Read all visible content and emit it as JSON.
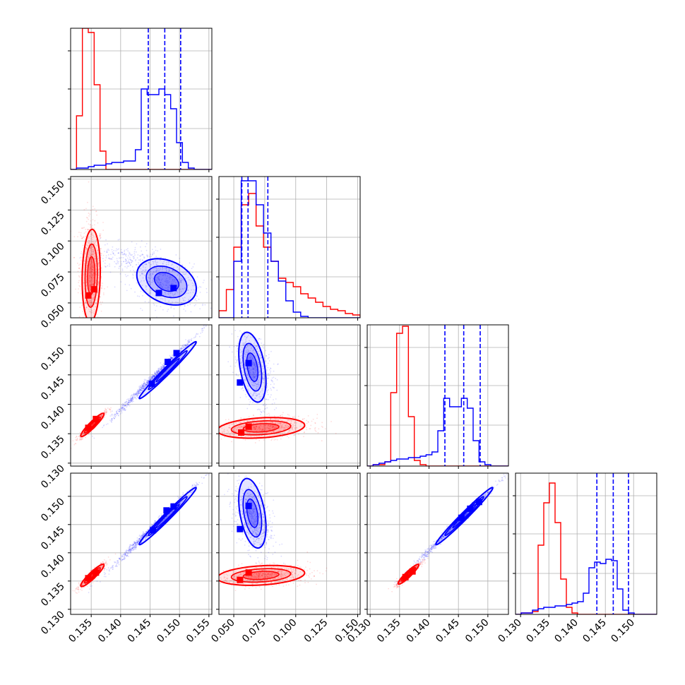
{
  "chart_data": {
    "type": "corner",
    "n_params": 4,
    "grid": true,
    "series": [
      {
        "color": "#ff0000"
      },
      {
        "color": "#0000ff"
      }
    ],
    "tick_labels": {
      "p0": [
        "0.135",
        "0.140",
        "0.145",
        "0.150",
        "0.155"
      ],
      "p1_y": [
        "0.050",
        "0.075",
        "0.100",
        "0.125",
        "0.150"
      ],
      "p1_x": [
        "0.050",
        "0.075",
        "0.100",
        "0.125",
        "0.150"
      ],
      "p2_y": [
        "0.130",
        "0.135",
        "0.140",
        "0.145",
        "0.150"
      ],
      "p2_x": [
        "0.130",
        "0.135",
        "0.140",
        "0.145",
        "0.150"
      ],
      "p3_y": [
        "0.130",
        "0.135",
        "0.140",
        "0.145",
        "0.150"
      ],
      "p3_x": [
        "0.130",
        "0.135",
        "0.140",
        "0.145",
        "0.150"
      ]
    },
    "ranges": {
      "p0": [
        0.1315,
        0.1555
      ],
      "p1": [
        0.038,
        0.152
      ],
      "p2": [
        0.1295,
        0.1535
      ],
      "p3": [
        0.1291,
        0.1541
      ]
    },
    "quantile_lines_blue": {
      "p0": [
        0.1447,
        0.1475,
        0.1502
      ],
      "p1": [
        0.0565,
        0.0615,
        0.0775
      ],
      "p2": [
        0.1427,
        0.1459,
        0.1487
      ],
      "p3": [
        0.1435,
        0.1464,
        0.1491
      ]
    },
    "histograms": {
      "p0": {
        "edges_start": 0.1315,
        "bin_width": 0.001,
        "red": [
          0.0,
          0.38,
          1.0,
          0.97,
          0.6,
          0.13,
          0.0,
          0.0,
          0.0,
          0.0,
          0.0,
          0.0,
          0.0,
          0.0,
          0.0,
          0.0,
          0.0,
          0.0,
          0.0,
          0.0,
          0.0,
          0.0,
          0.0,
          0.0
        ],
        "blue": [
          0.0,
          0.01,
          0.01,
          0.02,
          0.03,
          0.03,
          0.04,
          0.05,
          0.05,
          0.06,
          0.06,
          0.14,
          0.57,
          0.53,
          0.53,
          0.57,
          0.53,
          0.43,
          0.19,
          0.05,
          0.01,
          0.0,
          0.0,
          0.0
        ]
      },
      "p1": {
        "edges_start": 0.038,
        "bin_width": 0.006,
        "red": [
          0.05,
          0.2,
          0.5,
          0.8,
          0.88,
          0.65,
          0.5,
          0.4,
          0.28,
          0.25,
          0.22,
          0.17,
          0.14,
          0.11,
          0.08,
          0.06,
          0.05,
          0.03,
          0.02
        ],
        "blue": [
          0.0,
          0.0,
          0.4,
          0.97,
          0.97,
          0.8,
          0.6,
          0.4,
          0.26,
          0.12,
          0.04,
          0.01,
          0.0,
          0.0,
          0.0,
          0.0,
          0.0,
          0.0,
          0.0
        ]
      },
      "p2": {
        "edges_start": 0.1295,
        "bin_width": 0.001,
        "red": [
          0.0,
          0.01,
          0.01,
          0.03,
          0.52,
          0.94,
          0.99,
          0.35,
          0.04,
          0.01,
          0.0,
          0.0,
          0.0,
          0.0,
          0.0,
          0.0,
          0.0,
          0.0,
          0.0,
          0.0,
          0.0,
          0.0,
          0.0,
          0.0
        ],
        "blue": [
          0.0,
          0.01,
          0.02,
          0.03,
          0.04,
          0.05,
          0.05,
          0.06,
          0.06,
          0.07,
          0.08,
          0.1,
          0.25,
          0.48,
          0.42,
          0.42,
          0.48,
          0.41,
          0.18,
          0.03,
          0.01,
          0.0,
          0.0,
          0.0
        ]
      },
      "p3": {
        "edges_start": 0.1291,
        "bin_width": 0.001,
        "red": [
          0.0,
          0.01,
          0.01,
          0.02,
          0.49,
          0.79,
          0.93,
          0.65,
          0.25,
          0.05,
          0.01,
          0.0,
          0.0,
          0.0,
          0.0,
          0.0,
          0.0,
          0.0,
          0.0,
          0.0,
          0.0,
          0.0,
          0.0,
          0.0,
          0.0
        ],
        "blue": [
          0.0,
          0.01,
          0.01,
          0.03,
          0.04,
          0.05,
          0.05,
          0.06,
          0.06,
          0.07,
          0.08,
          0.09,
          0.15,
          0.33,
          0.37,
          0.36,
          0.39,
          0.38,
          0.18,
          0.03,
          0.01,
          0.0,
          0.0,
          0.0,
          0.0
        ]
      }
    }
  }
}
